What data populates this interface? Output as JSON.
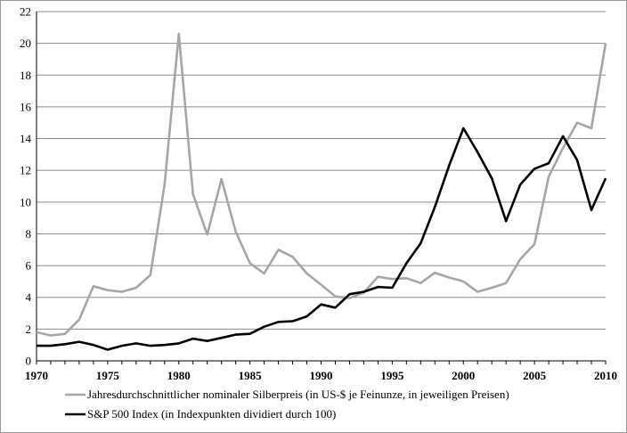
{
  "chart_data": {
    "type": "line",
    "x": [
      1970,
      1971,
      1972,
      1973,
      1974,
      1975,
      1976,
      1977,
      1978,
      1979,
      1980,
      1981,
      1982,
      1983,
      1984,
      1985,
      1986,
      1987,
      1988,
      1989,
      1990,
      1991,
      1992,
      1993,
      1994,
      1995,
      1996,
      1997,
      1998,
      1999,
      2000,
      2001,
      2002,
      2003,
      2004,
      2005,
      2006,
      2007,
      2008,
      2009,
      2010
    ],
    "xlim": [
      1970,
      2010
    ],
    "ylim": [
      0,
      22
    ],
    "xticks": [
      1970,
      1975,
      1980,
      1985,
      1990,
      1995,
      2000,
      2005,
      2010
    ],
    "yticks": [
      0,
      2,
      4,
      6,
      8,
      10,
      12,
      14,
      16,
      18,
      20,
      22
    ],
    "grid": "horizontal",
    "legend_position": "bottom",
    "series": [
      {
        "name": "Jahresdurchschnittlicher nominaler Silberpreis (in US-$ je Feinunze, in jeweiligen Preisen)",
        "color": "#a6a6a6",
        "values": [
          1.8,
          1.6,
          1.7,
          2.6,
          4.7,
          4.45,
          4.35,
          4.6,
          5.4,
          11.1,
          20.6,
          10.5,
          7.95,
          11.45,
          8.15,
          6.15,
          5.5,
          7.0,
          6.55,
          5.5,
          4.8,
          4.05,
          3.95,
          4.3,
          5.3,
          5.15,
          5.2,
          4.9,
          5.55,
          5.25,
          5.0,
          4.35,
          4.6,
          4.9,
          6.4,
          7.35,
          11.6,
          13.4,
          15.0,
          14.65,
          20.0
        ]
      },
      {
        "name": "S&P 500 Index (in Indexpunkten dividiert durch 100)",
        "color": "#000000",
        "values": [
          0.95,
          0.95,
          1.05,
          1.2,
          1.0,
          0.7,
          0.95,
          1.1,
          0.95,
          1.0,
          1.1,
          1.4,
          1.25,
          1.45,
          1.65,
          1.7,
          2.15,
          2.45,
          2.5,
          2.8,
          3.55,
          3.35,
          4.2,
          4.35,
          4.65,
          4.6,
          6.15,
          7.4,
          9.7,
          12.3,
          14.65,
          13.15,
          11.5,
          8.8,
          11.1,
          12.1,
          12.45,
          14.15,
          12.65,
          9.5,
          11.5
        ]
      }
    ]
  }
}
